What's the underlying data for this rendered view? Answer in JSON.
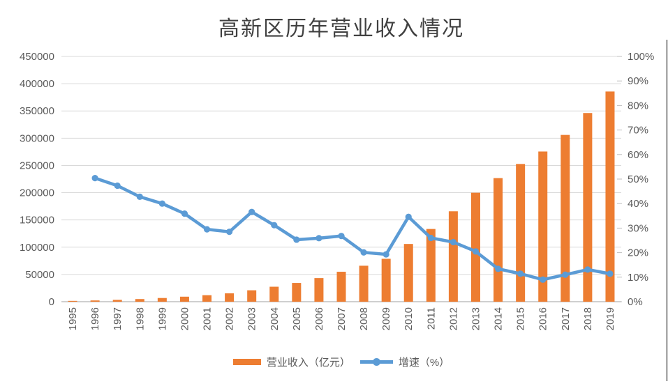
{
  "title": "高新区历年营业收入情况",
  "legend": [
    {
      "label": "营业收入（亿元）",
      "color": "#ED7D31",
      "swatch": "bar"
    },
    {
      "label": "增速（%）",
      "color": "#5B9BD5",
      "swatch": "line-with-dot"
    }
  ],
  "chart_data": {
    "type": "bar",
    "subtype": "combo bar + line, dual y-axis",
    "title": "高新区历年营业收入情况",
    "categories": [
      "1995",
      "1996",
      "1997",
      "1998",
      "1999",
      "2000",
      "2001",
      "2002",
      "2003",
      "2004",
      "2005",
      "2006",
      "2007",
      "2008",
      "2009",
      "2010",
      "2011",
      "2012",
      "2013",
      "2014",
      "2015",
      "2016",
      "2017",
      "2018",
      "2019"
    ],
    "series": [
      {
        "name": "营业收入（亿元）",
        "chart_type": "bar",
        "y_axis": "primary",
        "color": "#ED7D31",
        "values": [
          1529,
          2300,
          3388,
          4840,
          6775,
          9209,
          11928,
          15326,
          20939,
          27466,
          34416,
          43320,
          54926,
          65986,
          78707,
          105917,
          133435,
          165870,
          199902,
          226764,
          252705,
          275558,
          305991,
          346168,
          385639
        ]
      },
      {
        "name": "增速（%）",
        "chart_type": "line",
        "y_axis": "secondary",
        "color": "#5B9BD5",
        "values": [
          null,
          50.4,
          47.3,
          42.8,
          40.0,
          35.9,
          29.5,
          28.5,
          36.6,
          31.2,
          25.3,
          25.9,
          26.8,
          20.1,
          19.3,
          34.6,
          26.0,
          24.3,
          20.5,
          13.4,
          11.4,
          9.0,
          11.0,
          13.1,
          11.4
        ]
      }
    ],
    "primary_axis": {
      "min": 0,
      "max": 450000,
      "step": 50000,
      "tick_labels": [
        "0",
        "50000",
        "100000",
        "150000",
        "200000",
        "250000",
        "300000",
        "350000",
        "400000",
        "450000"
      ]
    },
    "secondary_axis": {
      "min": 0,
      "max": 100,
      "step": 10,
      "tick_labels": [
        "0%",
        "10%",
        "20%",
        "30%",
        "40%",
        "50%",
        "60%",
        "70%",
        "80%",
        "90%",
        "100%"
      ]
    },
    "gridlines": "horizontal at primary axis steps",
    "legend_position": "bottom",
    "x_tick_label_rotation": -90
  },
  "colors": {
    "bar": "#ED7D31",
    "line": "#5B9BD5",
    "gridline": "#D9D9D9",
    "axis_line": "#BFBFBF",
    "tick_text": "#595959",
    "title_text": "#404040",
    "background": "#FFFFFF",
    "edge_line": "#262626"
  }
}
